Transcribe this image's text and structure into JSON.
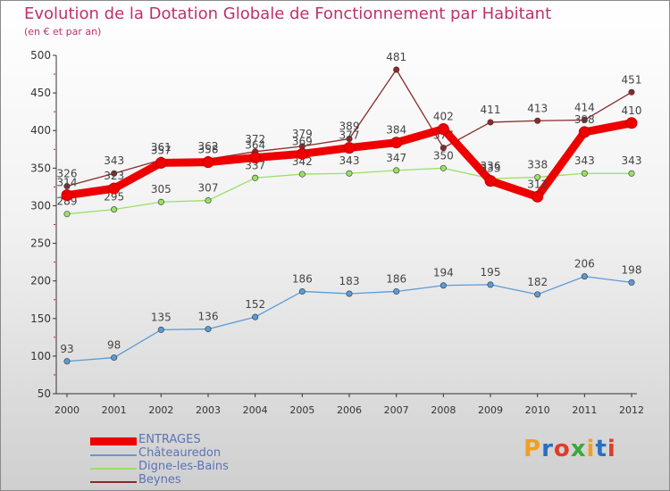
{
  "header": {
    "title": "Evolution de la Dotation Globale de Fonctionnement par Habitant",
    "subtitle": "(en € et par an)"
  },
  "logo": {
    "text": "Proxiti",
    "colors": [
      "#f0a020",
      "#2a6fc0",
      "#e23a2a",
      "#3aa83a"
    ]
  },
  "chart_data": {
    "type": "line",
    "x": [
      2000,
      2001,
      2002,
      2003,
      2004,
      2005,
      2006,
      2007,
      2008,
      2009,
      2010,
      2011,
      2012
    ],
    "xlim": [
      2000,
      2012
    ],
    "ylim": [
      50,
      500
    ],
    "yticks": [
      50,
      100,
      150,
      200,
      250,
      300,
      350,
      400,
      450,
      500
    ],
    "grid": false,
    "legend": "bottom-left",
    "series": [
      {
        "name": "ENTRAGES",
        "color": "#ee0000",
        "width": "thick",
        "values": [
          314,
          323,
          357,
          358,
          364,
          369,
          377,
          384,
          402,
          333,
          312,
          398,
          410
        ]
      },
      {
        "name": "Châteauredon",
        "color": "#5b9bd5",
        "width": "thin",
        "values": [
          93,
          98,
          135,
          136,
          152,
          186,
          183,
          186,
          194,
          195,
          182,
          206,
          198
        ]
      },
      {
        "name": "Digne-les-Bains",
        "color": "#99e066",
        "width": "thin",
        "values": [
          289,
          295,
          305,
          307,
          337,
          342,
          343,
          347,
          350,
          336,
          338,
          343,
          343
        ]
      },
      {
        "name": "Beynes",
        "color": "#8b2a2a",
        "width": "thin",
        "values": [
          326,
          343,
          361,
          362,
          372,
          379,
          389,
          481,
          377,
          411,
          413,
          414,
          451
        ]
      }
    ]
  }
}
